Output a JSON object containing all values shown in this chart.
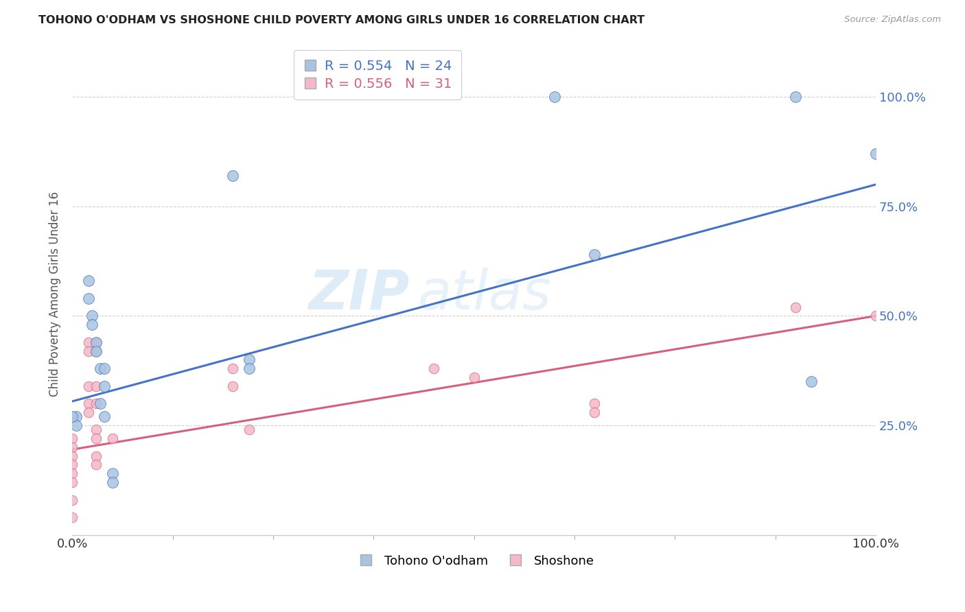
{
  "title": "TOHONO O'ODHAM VS SHOSHONE CHILD POVERTY AMONG GIRLS UNDER 16 CORRELATION CHART",
  "source": "Source: ZipAtlas.com",
  "ylabel": "Child Poverty Among Girls Under 16",
  "ytick_labels": [
    "25.0%",
    "50.0%",
    "75.0%",
    "100.0%"
  ],
  "ytick_values": [
    0.25,
    0.5,
    0.75,
    1.0
  ],
  "legend_blue_r": "R = 0.554",
  "legend_blue_n": "N = 24",
  "legend_pink_r": "R = 0.556",
  "legend_pink_n": "N = 31",
  "legend_label_blue": "Tohono O'odham",
  "legend_label_pink": "Shoshone",
  "watermark_zip": "ZIP",
  "watermark_atlas": "atlas",
  "blue_color": "#a8c4e0",
  "blue_line_color": "#4472c4",
  "pink_color": "#f4b8c8",
  "pink_line_color": "#d4607a",
  "blue_scatter": [
    [
      0.005,
      0.27
    ],
    [
      0.005,
      0.25
    ],
    [
      0.02,
      0.58
    ],
    [
      0.02,
      0.54
    ],
    [
      0.025,
      0.5
    ],
    [
      0.025,
      0.48
    ],
    [
      0.03,
      0.44
    ],
    [
      0.03,
      0.42
    ],
    [
      0.035,
      0.38
    ],
    [
      0.035,
      0.3
    ],
    [
      0.04,
      0.38
    ],
    [
      0.04,
      0.34
    ],
    [
      0.04,
      0.27
    ],
    [
      0.0,
      0.27
    ],
    [
      0.05,
      0.14
    ],
    [
      0.05,
      0.12
    ],
    [
      0.2,
      0.82
    ],
    [
      0.22,
      0.4
    ],
    [
      0.22,
      0.38
    ],
    [
      0.6,
      1.0
    ],
    [
      0.65,
      0.64
    ],
    [
      0.9,
      1.0
    ],
    [
      0.92,
      0.35
    ],
    [
      1.0,
      0.87
    ]
  ],
  "pink_scatter": [
    [
      0.0,
      0.22
    ],
    [
      0.0,
      0.2
    ],
    [
      0.0,
      0.18
    ],
    [
      0.0,
      0.16
    ],
    [
      0.0,
      0.14
    ],
    [
      0.0,
      0.12
    ],
    [
      0.0,
      0.08
    ],
    [
      0.0,
      0.04
    ],
    [
      0.02,
      0.44
    ],
    [
      0.02,
      0.42
    ],
    [
      0.02,
      0.34
    ],
    [
      0.02,
      0.3
    ],
    [
      0.02,
      0.28
    ],
    [
      0.03,
      0.44
    ],
    [
      0.03,
      0.42
    ],
    [
      0.03,
      0.34
    ],
    [
      0.03,
      0.3
    ],
    [
      0.03,
      0.24
    ],
    [
      0.03,
      0.22
    ],
    [
      0.03,
      0.18
    ],
    [
      0.03,
      0.16
    ],
    [
      0.05,
      0.22
    ],
    [
      0.2,
      0.38
    ],
    [
      0.2,
      0.34
    ],
    [
      0.22,
      0.24
    ],
    [
      0.45,
      0.38
    ],
    [
      0.5,
      0.36
    ],
    [
      0.65,
      0.3
    ],
    [
      0.65,
      0.28
    ],
    [
      0.9,
      0.52
    ],
    [
      1.0,
      0.5
    ]
  ],
  "blue_trendline": [
    [
      0.0,
      0.305
    ],
    [
      1.0,
      0.8
    ]
  ],
  "pink_trendline": [
    [
      0.0,
      0.195
    ],
    [
      1.0,
      0.5
    ]
  ],
  "background_color": "#ffffff",
  "grid_color": "#d0d0d0",
  "ymin": 0.0,
  "ymax": 1.1,
  "xmin": 0.0,
  "xmax": 1.0
}
